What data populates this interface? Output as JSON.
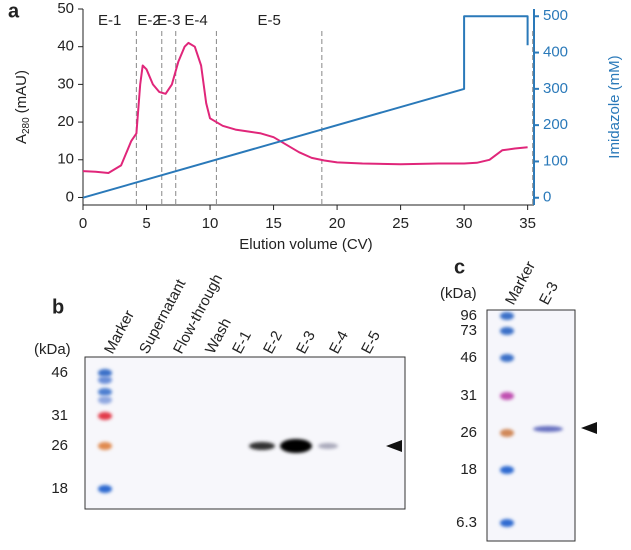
{
  "chart_data": {
    "type": "line",
    "panel_label": "a",
    "xlabel": "Elution volume (CV)",
    "ylabel": [
      "A",
      "280",
      "(mAU)"
    ],
    "y2label": "Imidazole (mM)",
    "xlim": [
      0,
      35.5
    ],
    "xticks": [
      0,
      5,
      10,
      15,
      20,
      25,
      30,
      35
    ],
    "ylim": [
      -2,
      50
    ],
    "yticks": [
      0,
      10,
      20,
      30,
      40,
      50
    ],
    "y2lim": [
      -20,
      520
    ],
    "y2ticks": [
      0,
      100,
      200,
      300,
      400,
      500
    ],
    "fraction_bounds": [
      4.2,
      6.2,
      7.3,
      10.5,
      18.8,
      35.4
    ],
    "fraction_labels": [
      "E-1",
      "E-2",
      "E-3",
      "E-4",
      "E-5"
    ],
    "series": [
      {
        "color": "#e0267a",
        "x": [
          0,
          1,
          2,
          3,
          3.8,
          4.2,
          4.5,
          4.7,
          5,
          5.5,
          6,
          6.5,
          7,
          7.5,
          8,
          8.3,
          8.8,
          9.3,
          9.7,
          10,
          11,
          12,
          13,
          14,
          15,
          16,
          17,
          18,
          19,
          20,
          22,
          25,
          28,
          30,
          31,
          32,
          33,
          34,
          35
        ],
        "values": [
          7,
          6.8,
          6.5,
          8.5,
          15,
          17,
          30,
          35,
          34,
          30,
          28,
          27.5,
          30,
          36,
          40,
          41,
          40,
          35,
          25,
          21,
          19,
          18,
          17.5,
          17,
          16,
          14,
          12,
          10.5,
          9.8,
          9.3,
          9,
          8.8,
          9,
          9,
          9.2,
          10,
          12.5,
          13,
          13.3
        ]
      },
      {
        "color": "#2a79b9",
        "axis": "y2",
        "x": [
          0,
          30,
          30,
          35,
          35
        ],
        "values": [
          0,
          300,
          500,
          500,
          420
        ]
      }
    ]
  },
  "panel_b": {
    "label": "b",
    "unit": "(kDa)",
    "lanes": [
      "Marker",
      "Supernatant",
      "Flow-through",
      "Wash",
      "E-1",
      "E-2",
      "E-3",
      "E-4",
      "E-5"
    ],
    "mw": [
      "46",
      "31",
      "26",
      "18"
    ]
  },
  "panel_c": {
    "label": "c",
    "unit": "(kDa)",
    "lanes": [
      "Marker",
      "E-3"
    ],
    "mw": [
      "96",
      "73",
      "46",
      "31",
      "26",
      "18",
      "6.3"
    ]
  }
}
